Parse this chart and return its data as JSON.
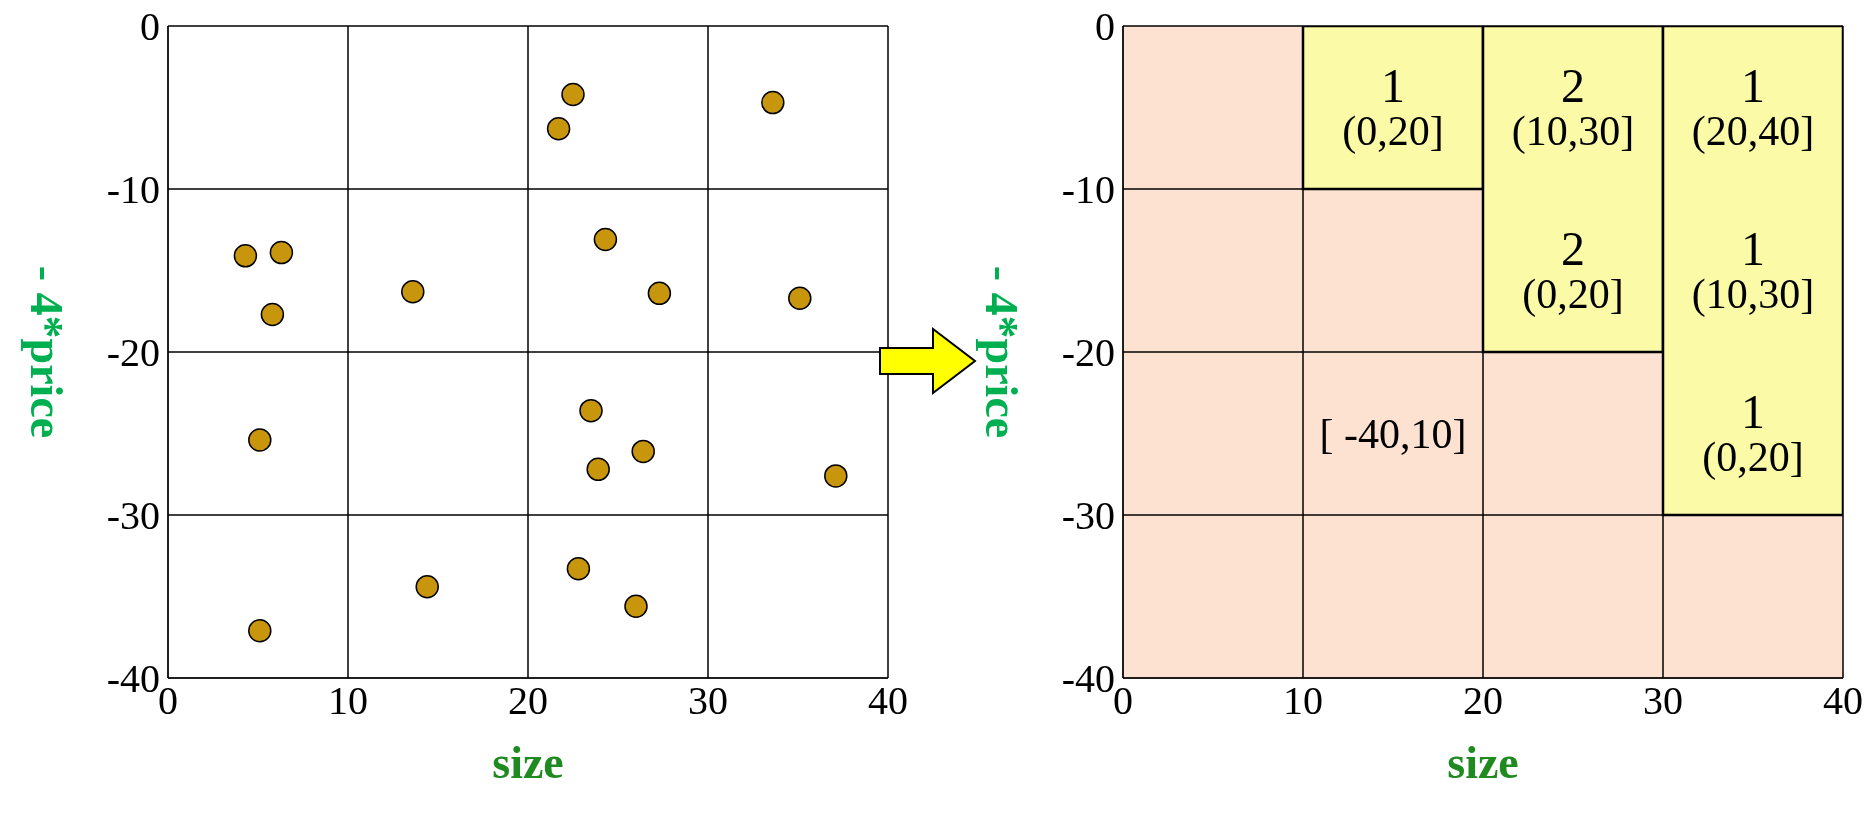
{
  "chart_data": [
    {
      "type": "scatter",
      "xlabel": "size",
      "ylabel": "- 4*price",
      "xlim": [
        0,
        40
      ],
      "ylim": [
        -40,
        0
      ],
      "xticks": [
        0,
        10,
        20,
        30,
        40
      ],
      "yticks": [
        -40,
        -30,
        -20,
        -10,
        0
      ],
      "grid": true,
      "marker": "circle",
      "x": [
        22.5,
        21.7,
        33.6,
        4.3,
        6.3,
        5.8,
        13.6,
        24.3,
        27.3,
        35.1,
        5.1,
        23.5,
        23.9,
        26.4,
        37.1,
        22.8,
        14.4,
        26.0,
        5.1
      ],
      "series": [
        {
          "color": "#c8960c",
          "values": [
            -4.2,
            -6.3,
            -4.7,
            -14.1,
            -13.9,
            -17.7,
            -16.3,
            -13.1,
            -16.4,
            -16.7,
            -25.4,
            -23.6,
            -27.2,
            -26.1,
            -27.6,
            -33.3,
            -34.4,
            -35.6,
            -37.1
          ]
        }
      ]
    },
    {
      "type": "histogram",
      "xlabel": "size",
      "ylabel": "- 4*price",
      "xlim": [
        0,
        40
      ],
      "ylim": [
        -40,
        0
      ],
      "xticks": [
        0,
        10,
        20,
        30,
        40
      ],
      "yticks": [
        -40,
        -30,
        -20,
        -10,
        0
      ],
      "grid": true,
      "bins": [
        0,
        10,
        20,
        30,
        40
      ],
      "values": [
        0,
        -10,
        -20,
        -30
      ],
      "color": "#fbfaa6",
      "annotations": [
        "1\n(0,20]",
        "2\n(10,30]",
        "1\n(20,40]",
        "2\n(0,20]",
        "1\n(10,30]",
        "1\n(0,20]",
        "[ -40,10]"
      ]
    }
  ]
}
